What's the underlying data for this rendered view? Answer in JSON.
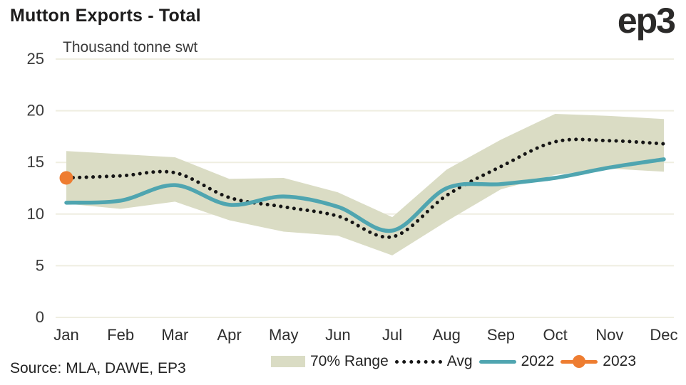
{
  "header": {
    "title": "Mutton Exports - Total",
    "logo": "ep3"
  },
  "source": "Source: MLA, DAWE, EP3",
  "chart_data": {
    "type": "line",
    "title": "Mutton Exports - Total",
    "unit_label": "Thousand tonne swt",
    "categories": [
      "Jan",
      "Feb",
      "Mar",
      "Apr",
      "May",
      "Jun",
      "Jul",
      "Aug",
      "Sep",
      "Oct",
      "Nov",
      "Dec"
    ],
    "y_ticks": [
      0,
      5,
      10,
      15,
      20,
      25
    ],
    "ylim": [
      0,
      25
    ],
    "grid": "horizontal",
    "grid_color": "#efeee1",
    "legend_position": "bottom",
    "series": [
      {
        "name": "70% Range",
        "type": "band",
        "color": "#dadcc4",
        "upper": [
          16.1,
          15.8,
          15.5,
          13.4,
          13.5,
          12.1,
          9.7,
          14.3,
          17.2,
          19.7,
          19.5,
          19.2
        ],
        "lower": [
          11.0,
          10.5,
          11.2,
          9.4,
          8.3,
          7.9,
          6.0,
          9.3,
          12.4,
          13.8,
          14.4,
          14.1
        ]
      },
      {
        "name": "Avg",
        "type": "dotted-line",
        "color": "#151515",
        "values": [
          13.5,
          13.7,
          14.0,
          11.6,
          10.7,
          9.8,
          7.8,
          11.8,
          14.6,
          17.0,
          17.1,
          16.8
        ]
      },
      {
        "name": "2022",
        "type": "line",
        "color": "#4fa5b0",
        "values": [
          11.1,
          11.3,
          12.8,
          10.9,
          11.7,
          10.7,
          8.4,
          12.5,
          12.9,
          13.5,
          14.5,
          15.3
        ]
      },
      {
        "name": "2023",
        "type": "point",
        "color": "#ee7d31",
        "values": [
          13.5,
          null,
          null,
          null,
          null,
          null,
          null,
          null,
          null,
          null,
          null,
          null
        ]
      }
    ]
  }
}
